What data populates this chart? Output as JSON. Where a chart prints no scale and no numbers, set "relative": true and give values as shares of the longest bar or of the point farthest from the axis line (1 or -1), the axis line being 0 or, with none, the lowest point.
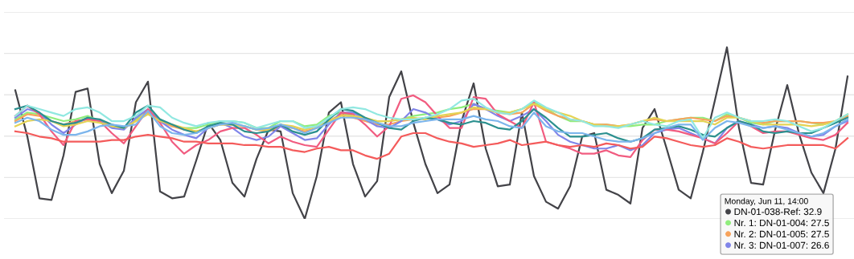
{
  "chart_data": {
    "type": "line",
    "relative": true,
    "grid": "y",
    "legend": "bottom right",
    "legend_title": "Monday, Jun 11, 14:00",
    "marker": "none",
    "line_style": "solid",
    "categories": [
      null,
      null,
      null,
      null,
      null,
      null,
      null,
      null,
      null,
      null,
      null,
      null,
      null,
      null,
      null,
      null,
      null,
      null,
      null,
      null,
      null,
      null,
      null,
      null,
      null,
      null,
      null,
      null,
      null,
      null,
      null,
      null,
      null,
      null,
      null,
      null,
      null,
      null,
      null,
      null,
      null,
      null,
      null,
      null,
      null,
      null,
      null,
      null,
      null,
      null,
      null,
      null,
      null,
      null,
      null,
      null,
      null,
      null,
      null,
      null,
      null,
      null,
      null,
      null,
      null,
      null,
      null,
      null,
      null,
      null
    ],
    "series": [
      {
        "name": "DN-01-038-Ref: 32.9",
        "color": "#434348",
        "values": [
          0.75,
          0.48,
          0.12,
          0.11,
          0.37,
          0.74,
          0.76,
          0.32,
          0.15,
          0.28,
          0.68,
          0.8,
          0.16,
          0.12,
          0.13,
          0.34,
          0.56,
          0.46,
          0.21,
          0.13,
          0.35,
          0.52,
          0.51,
          0.15,
          0.0,
          0.25,
          0.62,
          0.68,
          0.32,
          0.13,
          0.22,
          0.71,
          0.86,
          0.56,
          0.32,
          0.15,
          0.2,
          0.57,
          0.79,
          0.41,
          0.19,
          0.2,
          0.62,
          0.25,
          0.1,
          0.06,
          0.19,
          0.48,
          0.5,
          0.17,
          0.14,
          0.09,
          0.53,
          0.64,
          0.41,
          0.17,
          0.12,
          0.39,
          0.69,
          1.0,
          0.53,
          0.21,
          0.2,
          0.52,
          0.78,
          0.49,
          0.27,
          0.15,
          0.41,
          0.83
        ]
      },
      {
        "name": "Nr. 1: DN-01-004: 27.5",
        "color": "#90ed7d",
        "values": [
          0.58,
          0.62,
          0.61,
          0.59,
          0.57,
          0.58,
          0.6,
          0.57,
          0.54,
          0.53,
          0.58,
          0.64,
          0.58,
          0.54,
          0.53,
          0.53,
          0.55,
          0.57,
          0.57,
          0.56,
          0.53,
          0.53,
          0.57,
          0.57,
          0.54,
          0.55,
          0.6,
          0.62,
          0.6,
          0.58,
          0.57,
          0.57,
          0.58,
          0.6,
          0.61,
          0.62,
          0.64,
          0.65,
          0.67,
          0.64,
          0.63,
          0.62,
          0.64,
          0.68,
          0.64,
          0.6,
          0.57,
          0.57,
          0.55,
          0.55,
          0.54,
          0.54,
          0.55,
          0.55,
          0.57,
          0.58,
          0.59,
          0.59,
          0.57,
          0.61,
          0.59,
          0.56,
          0.55,
          0.57,
          0.57,
          0.57,
          0.56,
          0.55,
          0.57,
          0.6
        ]
      },
      {
        "name": "Nr. 2: DN-01-005: 27.5",
        "color": "#f7a35c",
        "values": [
          0.57,
          0.61,
          0.6,
          0.57,
          0.55,
          0.57,
          0.58,
          0.57,
          0.54,
          0.53,
          0.57,
          0.62,
          0.57,
          0.54,
          0.52,
          0.51,
          0.53,
          0.55,
          0.55,
          0.54,
          0.52,
          0.51,
          0.54,
          0.53,
          0.51,
          0.53,
          0.57,
          0.61,
          0.59,
          0.57,
          0.55,
          0.55,
          0.57,
          0.58,
          0.59,
          0.59,
          0.6,
          0.62,
          0.64,
          0.64,
          0.62,
          0.61,
          0.62,
          0.67,
          0.63,
          0.6,
          0.58,
          0.57,
          0.55,
          0.55,
          0.54,
          0.55,
          0.57,
          0.58,
          0.57,
          0.58,
          0.59,
          0.58,
          0.57,
          0.6,
          0.59,
          0.57,
          0.56,
          0.57,
          0.57,
          0.57,
          0.56,
          0.56,
          0.57,
          0.6
        ]
      },
      {
        "name": "Nr. 3: DN-01-007: 26.6",
        "color": "#8085e9",
        "values": [
          0.59,
          0.64,
          0.62,
          0.55,
          0.5,
          0.55,
          0.59,
          0.57,
          0.53,
          0.52,
          0.59,
          0.64,
          0.57,
          0.52,
          0.49,
          0.47,
          0.53,
          0.56,
          0.53,
          0.48,
          0.46,
          0.48,
          0.54,
          0.5,
          0.46,
          0.47,
          0.55,
          0.62,
          0.62,
          0.58,
          0.54,
          0.53,
          0.57,
          0.64,
          0.62,
          0.58,
          0.55,
          0.57,
          0.67,
          0.64,
          0.6,
          0.57,
          0.6,
          0.64,
          0.57,
          0.49,
          0.45,
          0.43,
          0.41,
          0.41,
          0.43,
          0.4,
          0.43,
          0.5,
          0.52,
          0.53,
          0.5,
          0.47,
          0.44,
          0.53,
          0.57,
          0.55,
          0.53,
          0.54,
          0.53,
          0.5,
          0.48,
          0.49,
          0.54,
          0.57
        ]
      },
      {
        "color": "#f15c80",
        "values": [
          0.6,
          0.66,
          0.61,
          0.51,
          0.43,
          0.57,
          0.58,
          0.57,
          0.5,
          0.44,
          0.54,
          0.64,
          0.56,
          0.45,
          0.38,
          0.43,
          0.46,
          0.51,
          0.53,
          0.53,
          0.49,
          0.44,
          0.48,
          0.45,
          0.43,
          0.42,
          0.52,
          0.62,
          0.61,
          0.55,
          0.48,
          0.54,
          0.7,
          0.72,
          0.68,
          0.6,
          0.53,
          0.53,
          0.71,
          0.7,
          0.61,
          0.57,
          0.53,
          0.68,
          0.45,
          0.43,
          0.41,
          0.38,
          0.38,
          0.4,
          0.37,
          0.36,
          0.46,
          0.52,
          0.52,
          0.51,
          0.49,
          0.47,
          0.44,
          0.5,
          0.57,
          0.54,
          0.5,
          0.51,
          0.51,
          0.49,
          0.47,
          0.46,
          0.49,
          0.56
        ]
      },
      {
        "color": "#e4d354",
        "values": [
          0.54,
          0.57,
          0.58,
          0.57,
          0.54,
          0.55,
          0.57,
          0.56,
          0.54,
          0.53,
          0.57,
          0.61,
          0.57,
          0.55,
          0.53,
          0.51,
          0.53,
          0.55,
          0.55,
          0.54,
          0.52,
          0.52,
          0.55,
          0.54,
          0.52,
          0.54,
          0.57,
          0.6,
          0.6,
          0.59,
          0.57,
          0.57,
          0.58,
          0.59,
          0.58,
          0.6,
          0.61,
          0.62,
          0.65,
          0.64,
          0.62,
          0.62,
          0.64,
          0.67,
          0.64,
          0.62,
          0.6,
          0.57,
          0.55,
          0.54,
          0.54,
          0.55,
          0.57,
          0.59,
          0.57,
          0.57,
          0.57,
          0.57,
          0.55,
          0.59,
          0.59,
          0.57,
          0.55,
          0.55,
          0.55,
          0.55,
          0.54,
          0.55,
          0.57,
          0.61
        ]
      },
      {
        "color": "#2b908f",
        "values": [
          0.64,
          0.66,
          0.62,
          0.57,
          0.55,
          0.56,
          0.59,
          0.58,
          0.55,
          0.53,
          0.62,
          0.66,
          0.58,
          0.55,
          0.52,
          0.5,
          0.54,
          0.56,
          0.55,
          0.51,
          0.5,
          0.51,
          0.55,
          0.51,
          0.49,
          0.51,
          0.58,
          0.64,
          0.63,
          0.59,
          0.56,
          0.53,
          0.52,
          0.57,
          0.59,
          0.58,
          0.56,
          0.55,
          0.57,
          0.56,
          0.53,
          0.52,
          0.57,
          0.64,
          0.59,
          0.53,
          0.48,
          0.48,
          0.49,
          0.5,
          0.47,
          0.45,
          0.47,
          0.52,
          0.53,
          0.54,
          0.52,
          0.49,
          0.48,
          0.53,
          0.57,
          0.55,
          0.51,
          0.5,
          0.51,
          0.5,
          0.5,
          0.53,
          0.56,
          0.59
        ]
      },
      {
        "color": "#f45b5b",
        "values": [
          0.51,
          0.5,
          0.48,
          0.47,
          0.45,
          0.45,
          0.45,
          0.45,
          0.46,
          0.46,
          0.48,
          0.49,
          0.48,
          0.47,
          0.45,
          0.45,
          0.44,
          0.44,
          0.44,
          0.43,
          0.43,
          0.42,
          0.42,
          0.4,
          0.39,
          0.41,
          0.42,
          0.4,
          0.4,
          0.37,
          0.35,
          0.38,
          0.48,
          0.5,
          0.5,
          0.47,
          0.45,
          0.44,
          0.42,
          0.43,
          0.44,
          0.46,
          0.43,
          0.44,
          0.45,
          0.43,
          0.42,
          0.43,
          0.42,
          0.44,
          0.43,
          0.41,
          0.42,
          0.48,
          0.47,
          0.45,
          0.43,
          0.42,
          0.43,
          0.47,
          0.45,
          0.42,
          0.41,
          0.42,
          0.43,
          0.43,
          0.43,
          0.43,
          0.41,
          0.47
        ]
      },
      {
        "color": "#91e8e1",
        "values": [
          0.6,
          0.66,
          0.64,
          0.62,
          0.6,
          0.64,
          0.65,
          0.62,
          0.57,
          0.57,
          0.6,
          0.66,
          0.65,
          0.59,
          0.56,
          0.54,
          0.56,
          0.57,
          0.57,
          0.56,
          0.53,
          0.55,
          0.57,
          0.57,
          0.53,
          0.54,
          0.59,
          0.64,
          0.65,
          0.64,
          0.61,
          0.59,
          0.58,
          0.58,
          0.59,
          0.61,
          0.64,
          0.69,
          0.7,
          0.65,
          0.62,
          0.61,
          0.64,
          0.69,
          0.65,
          0.62,
          0.58,
          0.57,
          0.54,
          0.54,
          0.53,
          0.55,
          0.57,
          0.55,
          0.54,
          0.57,
          0.58,
          0.47,
          0.59,
          0.62,
          0.59,
          0.57,
          0.57,
          0.58,
          0.57,
          0.54,
          0.51,
          0.53,
          0.57,
          0.61
        ]
      },
      {
        "color": "#7cb5ec",
        "values": [
          0.56,
          0.59,
          0.57,
          0.52,
          0.49,
          0.49,
          0.51,
          0.54,
          0.55,
          0.54,
          0.55,
          0.63,
          0.54,
          0.5,
          0.49,
          0.5,
          0.53,
          0.55,
          0.56,
          0.54,
          0.52,
          0.53,
          0.55,
          0.53,
          0.5,
          0.53,
          0.56,
          0.59,
          0.59,
          0.58,
          0.56,
          0.54,
          0.54,
          0.56,
          0.57,
          0.58,
          0.58,
          0.58,
          0.6,
          0.58,
          0.57,
          0.54,
          0.53,
          0.62,
          0.54,
          0.51,
          0.5,
          0.5,
          0.48,
          0.46,
          0.45,
          0.45,
          0.47,
          0.5,
          0.53,
          0.55,
          0.55,
          0.46,
          0.53,
          0.57,
          0.56,
          0.54,
          0.53,
          0.54,
          0.52,
          0.5,
          0.48,
          0.5,
          0.54,
          0.58
        ]
      }
    ]
  }
}
